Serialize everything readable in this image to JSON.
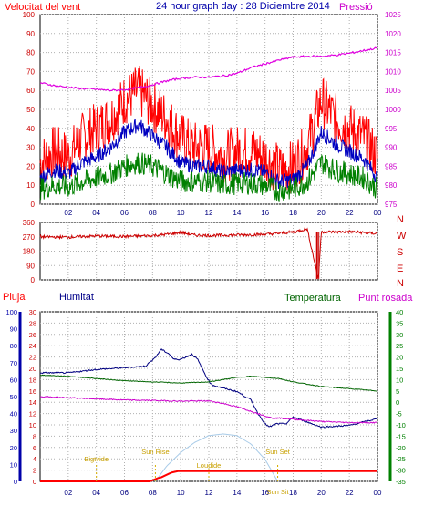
{
  "header": {
    "title": "24 hour graph day : 28 Diciembre 2014",
    "left_label": "Velocitat del vent",
    "right_label": "Pressió"
  },
  "bottom_header": {
    "rain_label": "Pluja",
    "humidity_label": "Humitat",
    "temperature_label": "Temperatura",
    "dewpoint_label": "Punt rosada"
  },
  "colors": {
    "wind_gust": "#ff0000",
    "wind_avg": "#0000c0",
    "wind_min": "#008000",
    "pressure": "#e000e0",
    "direction": "#cc0000",
    "humidity": "#000080",
    "temperature": "#006400",
    "dewpoint": "#cc00cc",
    "rain": "#ff0000",
    "sun": "#a8cbe8",
    "grid": "#b0b0b0",
    "axis_left": "#cc0000",
    "axis_right": "#cc00cc",
    "axis_hum": "#0000aa",
    "axis_temp": "#008000"
  },
  "chart_data": [
    {
      "type": "line",
      "name": "wind_pressure",
      "x_ticks": [
        "02",
        "04",
        "06",
        "08",
        "10",
        "12",
        "14",
        "16",
        "18",
        "20",
        "22",
        "00"
      ],
      "x_range": [
        0,
        24
      ],
      "ylim_left": [
        0,
        100
      ],
      "yticks_left": [
        "100",
        "90",
        "80",
        "70",
        "60",
        "50",
        "40",
        "30",
        "20",
        "10",
        "0"
      ],
      "ylim_right": [
        975,
        1025
      ],
      "yticks_right": [
        "1025",
        "1020",
        "1015",
        "1010",
        "1005",
        "1000",
        "995",
        "990",
        "985",
        "980",
        "975"
      ],
      "series": [
        {
          "key": "gust",
          "color_key": "wind_gust",
          "x": [
            0,
            1,
            2,
            3,
            4,
            5,
            6,
            7,
            8,
            9,
            10,
            11,
            12,
            13,
            14,
            15,
            16,
            17,
            18,
            19,
            20,
            21,
            22,
            23,
            24
          ],
          "values": [
            22,
            28,
            25,
            35,
            40,
            45,
            55,
            60,
            52,
            45,
            35,
            30,
            30,
            25,
            28,
            28,
            25,
            18,
            20,
            30,
            55,
            45,
            40,
            35,
            25
          ]
        },
        {
          "key": "avg",
          "color_key": "wind_avg",
          "x": [
            0,
            1,
            2,
            3,
            4,
            5,
            6,
            7,
            8,
            9,
            10,
            11,
            12,
            13,
            14,
            15,
            16,
            17,
            18,
            19,
            20,
            21,
            22,
            23,
            24
          ],
          "values": [
            14,
            18,
            16,
            22,
            25,
            30,
            38,
            42,
            36,
            30,
            22,
            20,
            20,
            17,
            18,
            18,
            17,
            12,
            13,
            20,
            38,
            32,
            28,
            24,
            14
          ]
        },
        {
          "key": "min",
          "color_key": "wind_min",
          "x": [
            0,
            1,
            2,
            3,
            4,
            5,
            6,
            7,
            8,
            9,
            10,
            11,
            12,
            13,
            14,
            15,
            16,
            17,
            18,
            19,
            20,
            21,
            22,
            23,
            24
          ],
          "values": [
            8,
            10,
            9,
            12,
            14,
            16,
            20,
            22,
            20,
            16,
            12,
            12,
            12,
            10,
            11,
            11,
            10,
            7,
            8,
            12,
            22,
            18,
            16,
            14,
            8
          ]
        },
        {
          "key": "pressure",
          "color_key": "pressure",
          "axis": "right",
          "x": [
            0,
            1,
            2,
            3,
            4,
            5,
            6,
            7,
            8,
            9,
            10,
            11,
            12,
            13,
            14,
            15,
            16,
            17,
            18,
            19,
            20,
            21,
            22,
            23,
            24
          ],
          "values": [
            1007.0,
            1006.3,
            1005.8,
            1005.5,
            1005.3,
            1005.0,
            1005.2,
            1005.7,
            1006.5,
            1007.5,
            1008.2,
            1008.5,
            1008.5,
            1008.8,
            1009.5,
            1011.0,
            1012.0,
            1013.0,
            1013.8,
            1014.0,
            1014.0,
            1014.3,
            1014.8,
            1015.5,
            1016.2
          ]
        }
      ]
    },
    {
      "type": "scatter",
      "name": "wind_direction",
      "x_range": [
        0,
        24
      ],
      "ylim": [
        0,
        360
      ],
      "yticks": [
        "360",
        "270",
        "180",
        "90",
        "0"
      ],
      "compass": [
        "N",
        "W",
        "S",
        "E",
        "N"
      ],
      "series": [
        {
          "key": "direction",
          "color_key": "direction",
          "x": [
            0,
            2,
            4,
            6,
            8,
            9,
            10,
            11,
            12,
            14,
            16,
            18,
            18.5,
            19,
            19.8,
            20,
            22,
            24
          ],
          "values": [
            270,
            268,
            275,
            272,
            278,
            285,
            298,
            280,
            278,
            282,
            285,
            300,
            310,
            320,
            5,
            300,
            302,
            290
          ]
        }
      ]
    },
    {
      "type": "line",
      "name": "humidity_temperature_rain",
      "x_ticks": [
        "02",
        "04",
        "06",
        "08",
        "10",
        "12",
        "14",
        "16",
        "18",
        "20",
        "22",
        "00"
      ],
      "x_range": [
        0,
        24
      ],
      "ylim_hum": [
        0,
        100
      ],
      "yticks_hum": [
        "100",
        "90",
        "80",
        "70",
        "60",
        "50",
        "40",
        "30",
        "20",
        "10",
        "0"
      ],
      "ylim_rain": [
        0,
        30
      ],
      "yticks_rain": [
        "30",
        "28",
        "26",
        "24",
        "22",
        "20",
        "18",
        "16",
        "14",
        "12",
        "10",
        "8",
        "6",
        "4",
        "2",
        "0"
      ],
      "ylim_temp": [
        -35,
        40
      ],
      "yticks_temp": [
        "40",
        "35",
        "30",
        "25",
        "20",
        "15",
        "10",
        "5",
        "0",
        "-5",
        "-10",
        "-15",
        "-20",
        "-25",
        "-30",
        "-35"
      ],
      "series": [
        {
          "key": "humidity",
          "color_key": "humidity",
          "x": [
            0,
            2,
            4,
            6,
            7.5,
            8.3,
            8.6,
            9.2,
            9.5,
            10,
            10.8,
            11.2,
            11.8,
            12.2,
            13,
            14,
            15,
            15.5,
            16,
            16.3,
            16.8,
            17.5,
            18,
            19,
            20,
            22,
            23,
            24
          ],
          "values": [
            64,
            64,
            66,
            67,
            68,
            74,
            78,
            75,
            72,
            72,
            75,
            72,
            62,
            57,
            55,
            53,
            48,
            40,
            34,
            32,
            34,
            34,
            38,
            35,
            32,
            33,
            35,
            37
          ]
        },
        {
          "key": "temperature",
          "color_key": "temperature",
          "axis": "temp",
          "x": [
            0,
            2,
            4,
            6,
            8,
            10,
            12,
            13,
            14,
            15,
            16,
            17,
            18,
            19,
            20,
            22,
            24
          ],
          "values": [
            12,
            11.5,
            10.5,
            9.5,
            9,
            8.5,
            9,
            10,
            11,
            11.5,
            11,
            10.5,
            9,
            8,
            7,
            6,
            5
          ]
        },
        {
          "key": "dewpoint",
          "color_key": "dewpoint",
          "axis": "temp",
          "x": [
            0,
            2,
            4,
            6,
            8,
            10,
            12,
            13,
            14,
            15,
            16,
            16.5,
            17,
            18,
            19,
            20,
            22,
            24
          ],
          "values": [
            2.5,
            2,
            1.5,
            1,
            0.8,
            0.5,
            0.6,
            -0.5,
            -2,
            -4,
            -6,
            -7,
            -7,
            -7.5,
            -8,
            -8.5,
            -9,
            -9
          ]
        },
        {
          "key": "rain",
          "color_key": "rain",
          "axis": "rain",
          "x": [
            0,
            7.5,
            7.8,
            8.2,
            8.4,
            8.6,
            9.2,
            9.4,
            9.8,
            24
          ],
          "values": [
            0,
            0,
            0,
            0.4,
            0.6,
            0.7,
            1.4,
            1.6,
            1.8,
            1.8
          ]
        },
        {
          "key": "sun",
          "color_key": "sun",
          "axis": "hum",
          "x": [
            8.2,
            9,
            10,
            11,
            12,
            13,
            14,
            15,
            16,
            16.9
          ],
          "values": [
            0,
            9,
            17,
            23,
            27,
            28,
            27,
            22,
            13,
            0
          ]
        }
      ],
      "annotations": [
        {
          "label": "Bigtvide",
          "x": 4
        },
        {
          "label": "Sun Rise",
          "x": 8.2
        },
        {
          "label": "Loudide",
          "x": 12
        },
        {
          "label": "Sun Set",
          "x": 16.9
        },
        {
          "label": "Sun Sit",
          "x": 16.9
        }
      ]
    }
  ]
}
